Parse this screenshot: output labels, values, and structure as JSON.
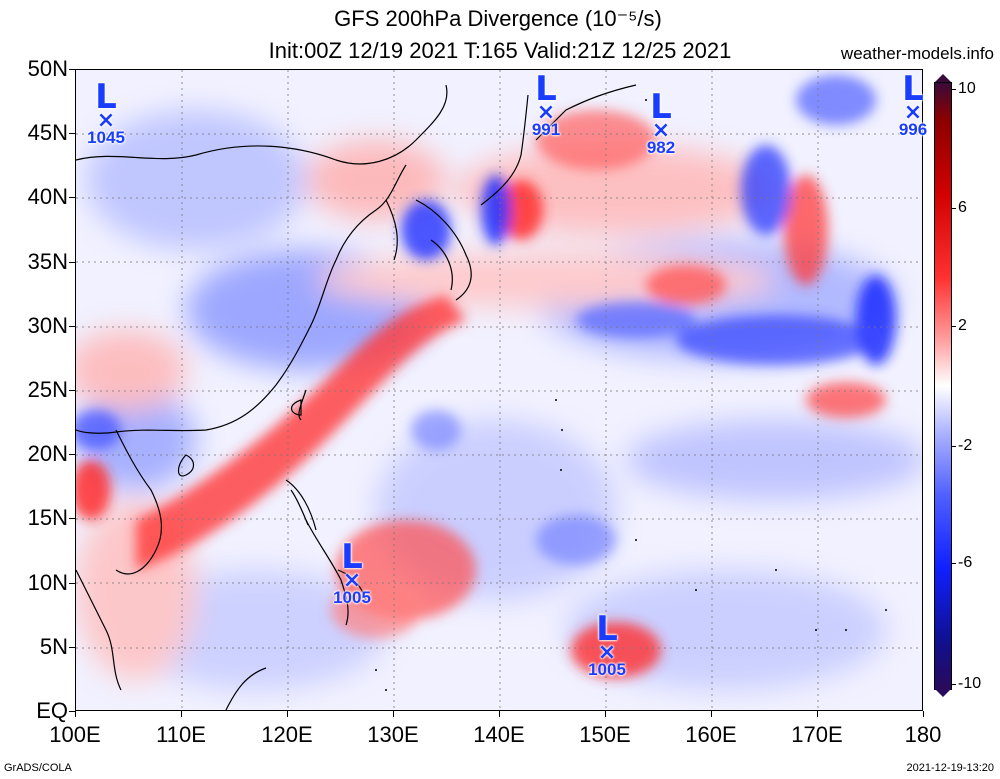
{
  "header": {
    "title_line1": "GFS 200hPa Divergence (10⁻⁵/s)",
    "title_line2": "Init:00Z 12/19 2021 T:165 Valid:21Z 12/25 2021",
    "site": "weather-models.info"
  },
  "axes": {
    "lat_labels": [
      "50N",
      "45N",
      "40N",
      "35N",
      "30N",
      "25N",
      "20N",
      "15N",
      "10N",
      "5N",
      "EQ"
    ],
    "lon_labels": [
      "100E",
      "110E",
      "120E",
      "130E",
      "140E",
      "150E",
      "160E",
      "170E",
      "180"
    ]
  },
  "colorbar": {
    "labels": [
      "10",
      "6",
      "2",
      "-2",
      "-6",
      "-10"
    ],
    "max_color": "#3a0a3a",
    "positive_color": "#ff0000",
    "negative_color": "#1020ff",
    "min_color": "#2a0a5a"
  },
  "lows": [
    {
      "letter": "L",
      "mark": "×",
      "pressure": "1045"
    },
    {
      "letter": "L",
      "mark": "×",
      "pressure": "991"
    },
    {
      "letter": "L",
      "mark": "×",
      "pressure": "982"
    },
    {
      "letter": "L",
      "mark": "×",
      "pressure": "996"
    },
    {
      "letter": "L",
      "mark": "×",
      "pressure": "1005"
    },
    {
      "letter": "L",
      "mark": "×",
      "pressure": "1005"
    }
  ],
  "footer": {
    "left": "GrADS/COLA",
    "right": "2021-12-19-13:20"
  }
}
